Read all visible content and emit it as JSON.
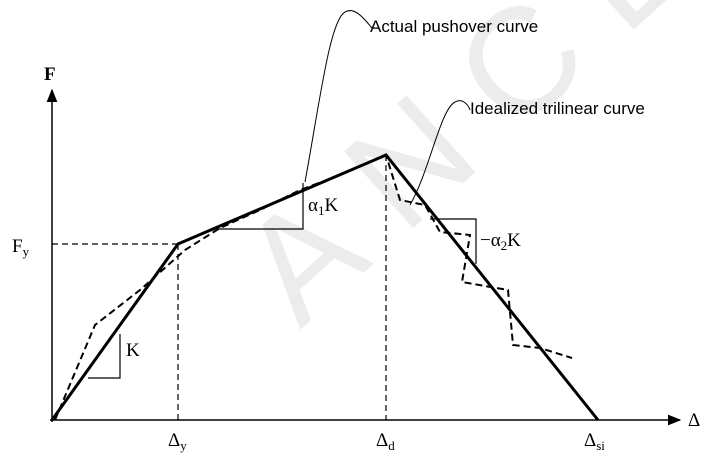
{
  "watermark": "ANCE",
  "callouts": {
    "actual": "Actual pushover curve",
    "idealized": "Idealized trilinear curve"
  },
  "axes": {
    "y": "F",
    "x": "Δ"
  },
  "labels": {
    "fy": {
      "base": "F",
      "sub": "y"
    },
    "dy": {
      "base": "Δ",
      "sub": "y"
    },
    "dd": {
      "base": "Δ",
      "sub": "d"
    },
    "dsi": {
      "base": "Δ",
      "sub": "si"
    },
    "k": "K",
    "a1k": {
      "base": "α",
      "sub": "1",
      "tail": "K"
    },
    "a2k": {
      "base": "−α",
      "sub": "2",
      "tail": "K"
    }
  }
}
